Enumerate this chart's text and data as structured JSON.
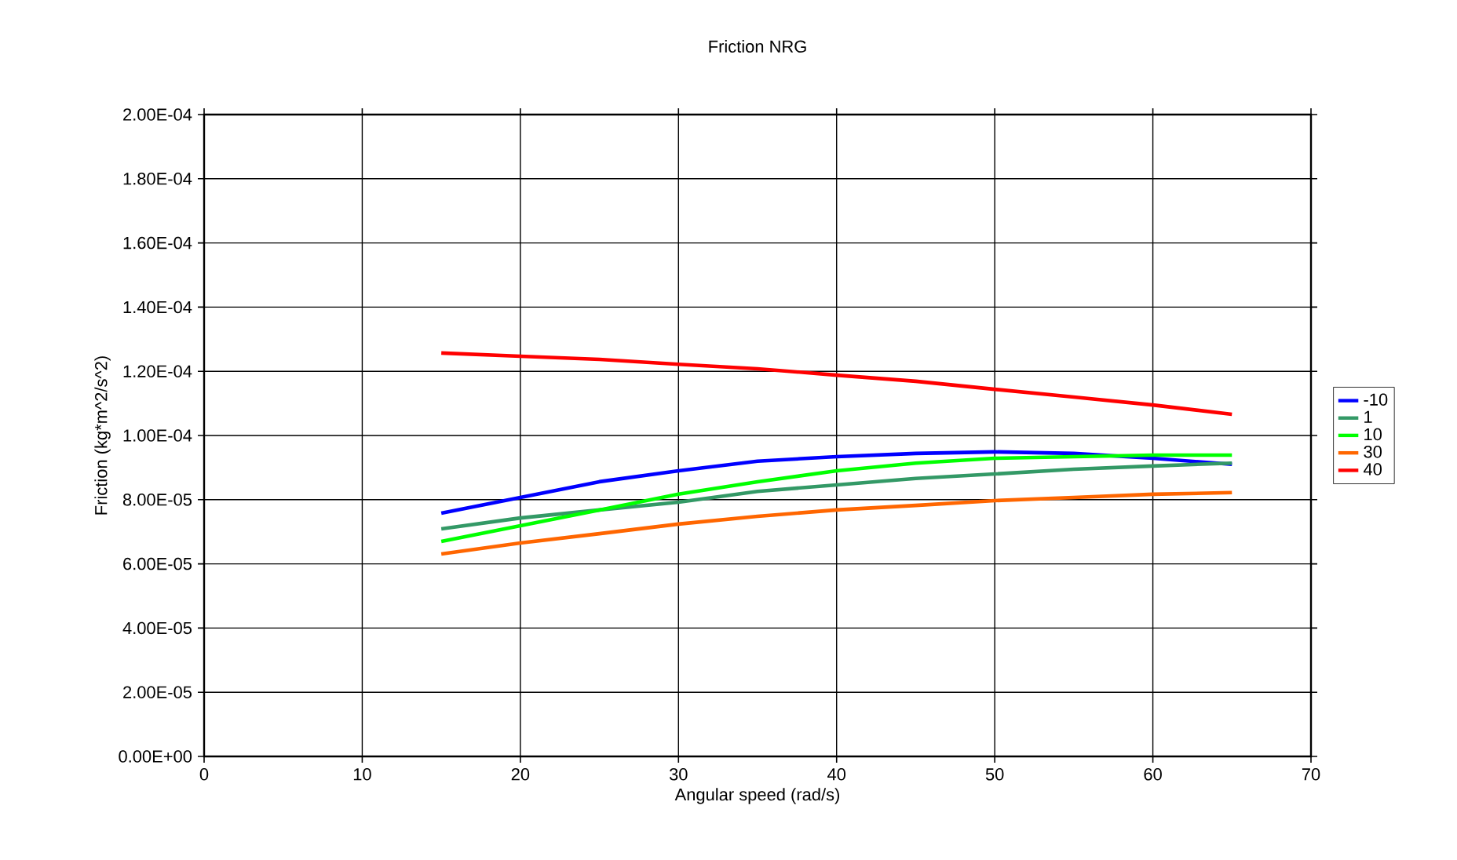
{
  "chart_data": {
    "type": "line",
    "title": "Friction NRG",
    "xlabel": "Angular speed (rad/s)",
    "ylabel": "Friction (kg*m^2/s^2)",
    "x": [
      15,
      20,
      25,
      30,
      35,
      40,
      45,
      50,
      55,
      60,
      65
    ],
    "series": [
      {
        "name": "-10",
        "color": "#0000ff",
        "values": [
          7.58e-05,
          8.07e-05,
          8.56e-05,
          8.9e-05,
          9.2e-05,
          9.34e-05,
          9.44e-05,
          9.49e-05,
          9.44e-05,
          9.29e-05,
          9.1e-05
        ]
      },
      {
        "name": "1",
        "color": "#339966",
        "values": [
          7.09e-05,
          7.43e-05,
          7.68e-05,
          7.92e-05,
          8.26e-05,
          8.46e-05,
          8.66e-05,
          8.8e-05,
          8.95e-05,
          9.05e-05,
          9.14e-05
        ]
      },
      {
        "name": "10",
        "color": "#00ff00",
        "values": [
          6.7e-05,
          7.19e-05,
          7.68e-05,
          8.17e-05,
          8.56e-05,
          8.9e-05,
          9.14e-05,
          9.29e-05,
          9.34e-05,
          9.39e-05,
          9.39e-05
        ]
      },
      {
        "name": "30",
        "color": "#ff6600",
        "values": [
          6.31e-05,
          6.65e-05,
          6.94e-05,
          7.24e-05,
          7.48e-05,
          7.68e-05,
          7.82e-05,
          7.97e-05,
          8.07e-05,
          8.17e-05,
          8.22e-05
        ]
      },
      {
        "name": "40",
        "color": "#ff0000",
        "values": [
          0.0001257,
          0.0001247,
          0.0001237,
          0.0001222,
          0.0001208,
          0.0001188,
          0.0001169,
          0.0001144,
          0.000112,
          0.0001095,
          0.0001066
        ]
      }
    ],
    "xlim": [
      0,
      70
    ],
    "xticks": [
      0,
      10,
      20,
      30,
      40,
      50,
      60,
      70
    ],
    "ylim": [
      0,
      0.0002
    ],
    "yticks": [
      {
        "value": 0,
        "label": "0.00E+00"
      },
      {
        "value": 2e-05,
        "label": "2.00E-05"
      },
      {
        "value": 4e-05,
        "label": "4.00E-05"
      },
      {
        "value": 6e-05,
        "label": "6.00E-05"
      },
      {
        "value": 8e-05,
        "label": "8.00E-05"
      },
      {
        "value": 0.0001,
        "label": "1.00E-04"
      },
      {
        "value": 0.00012,
        "label": "1.20E-04"
      },
      {
        "value": 0.00014,
        "label": "1.40E-04"
      },
      {
        "value": 0.00016,
        "label": "1.60E-04"
      },
      {
        "value": 0.00018,
        "label": "1.80E-04"
      },
      {
        "value": 0.0002,
        "label": "2.00E-04"
      }
    ],
    "grid": true,
    "legend": "right",
    "marker": "none",
    "line_style": "solid"
  }
}
